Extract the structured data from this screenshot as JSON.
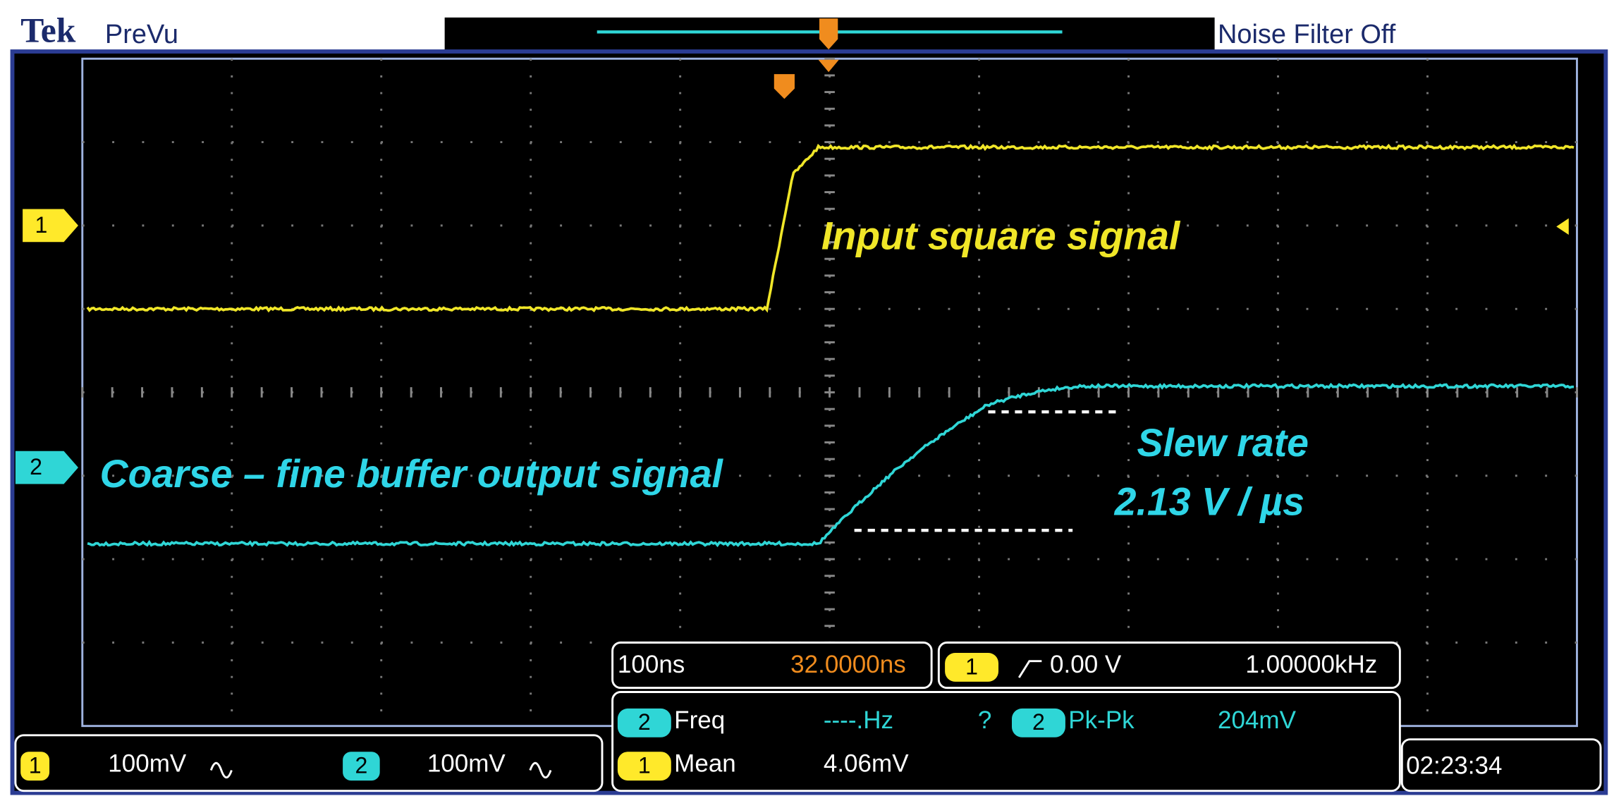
{
  "header": {
    "brand": "Tek",
    "mode": "PreVu",
    "noise_filter": "Noise Filter Off"
  },
  "screen": {
    "channel_markers": [
      "1",
      "2"
    ],
    "annotations": {
      "input": "Input square signal",
      "output": "Coarse – fine buffer output signal",
      "slew_label": "Slew rate",
      "slew_value": "2.13 V / µs"
    }
  },
  "readouts": {
    "ch1": {
      "channel": "1",
      "scale": "100mV"
    },
    "ch2": {
      "channel": "2",
      "scale": "100mV"
    },
    "horizontal": {
      "timebase": "100ns",
      "position": "32.0000ns"
    },
    "trigger": {
      "channel": "1",
      "level": "0.00 V",
      "frequency": "1.00000kHz"
    },
    "measurements": [
      {
        "channel": "2",
        "name": "Freq",
        "value": "----.Hz",
        "status": "?"
      },
      {
        "channel": "2",
        "name": "Pk-Pk",
        "value": "204mV"
      },
      {
        "channel": "1",
        "name": "Mean",
        "value": "4.06mV"
      }
    ],
    "clock": "02:23:34"
  }
}
